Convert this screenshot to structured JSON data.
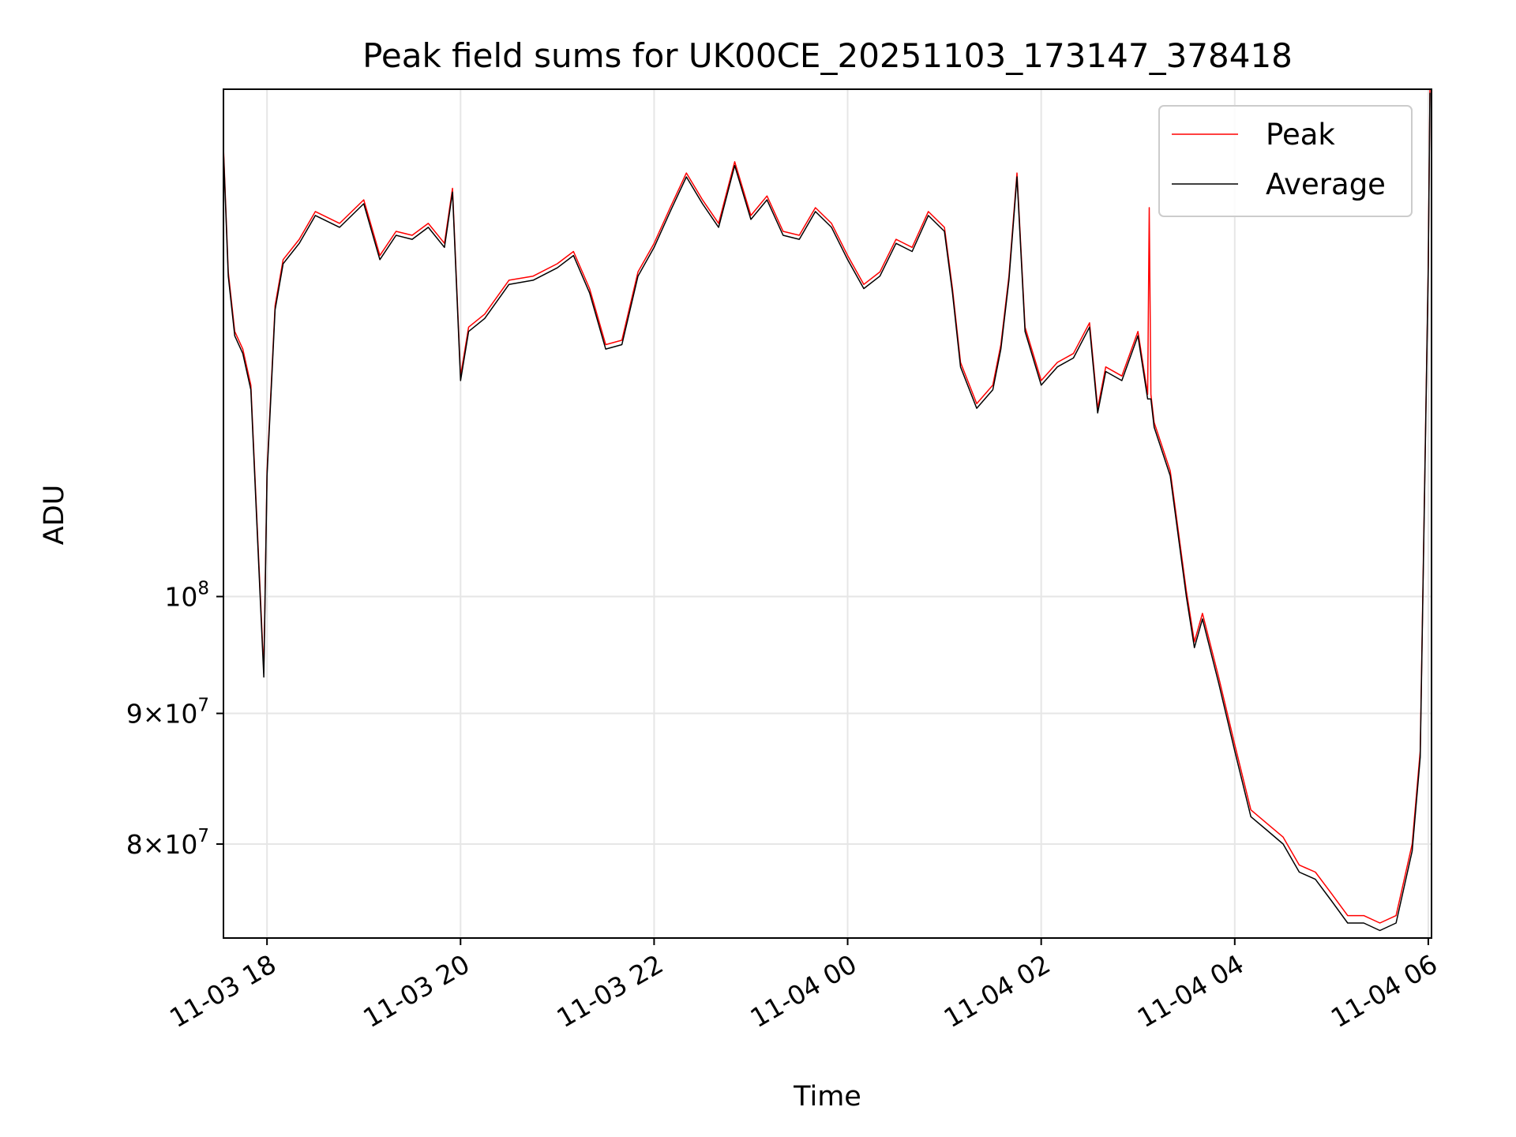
{
  "chart_data": {
    "type": "line",
    "title": "Peak field sums for UK00CE_20251103_173147_378418",
    "xlabel": "Time",
    "ylabel": "ADU",
    "yscale": "log",
    "xlim": [
      "2025-11-03 17:33",
      "2025-11-04 06:02"
    ],
    "ylim": [
      73500000,
      158000000
    ],
    "grid": true,
    "legend_position": "top-right",
    "x_ticks": [
      {
        "value": "2025-11-03 18:00",
        "label": "11-03 18"
      },
      {
        "value": "2025-11-03 20:00",
        "label": "11-03 20"
      },
      {
        "value": "2025-11-03 22:00",
        "label": "11-03 22"
      },
      {
        "value": "2025-11-04 00:00",
        "label": "11-04 00"
      },
      {
        "value": "2025-11-04 02:00",
        "label": "11-04 02"
      },
      {
        "value": "2025-11-04 04:00",
        "label": "11-04 04"
      },
      {
        "value": "2025-11-04 06:00",
        "label": "11-04 06"
      }
    ],
    "y_ticks": [
      {
        "value": 100000000,
        "base": "10",
        "exp": "8"
      },
      {
        "value": 90000000,
        "mant": "9",
        "base": "10",
        "exp": "7"
      },
      {
        "value": 80000000,
        "mant": "8",
        "base": "10",
        "exp": "7"
      }
    ],
    "series": [
      {
        "name": "Peak",
        "color": "#ff0000",
        "x": [
          "2025-11-03 17:33",
          "2025-11-03 17:36",
          "2025-11-03 17:40",
          "2025-11-03 17:45",
          "2025-11-03 17:50",
          "2025-11-03 17:55",
          "2025-11-03 17:58",
          "2025-11-03 18:00",
          "2025-11-03 18:05",
          "2025-11-03 18:10",
          "2025-11-03 18:20",
          "2025-11-03 18:30",
          "2025-11-03 18:45",
          "2025-11-03 19:00",
          "2025-11-03 19:10",
          "2025-11-03 19:20",
          "2025-11-03 19:30",
          "2025-11-03 19:40",
          "2025-11-03 19:50",
          "2025-11-03 19:55",
          "2025-11-03 20:00",
          "2025-11-03 20:05",
          "2025-11-03 20:15",
          "2025-11-03 20:30",
          "2025-11-03 20:45",
          "2025-11-03 21:00",
          "2025-11-03 21:10",
          "2025-11-03 21:20",
          "2025-11-03 21:30",
          "2025-11-03 21:40",
          "2025-11-03 21:50",
          "2025-11-03 22:00",
          "2025-11-03 22:10",
          "2025-11-03 22:20",
          "2025-11-03 22:30",
          "2025-11-03 22:40",
          "2025-11-03 22:50",
          "2025-11-03 23:00",
          "2025-11-03 23:10",
          "2025-11-03 23:20",
          "2025-11-03 23:30",
          "2025-11-03 23:40",
          "2025-11-03 23:50",
          "2025-11-04 00:00",
          "2025-11-04 00:10",
          "2025-11-04 00:20",
          "2025-11-04 00:30",
          "2025-11-04 00:40",
          "2025-11-04 00:50",
          "2025-11-04 01:00",
          "2025-11-04 01:05",
          "2025-11-04 01:10",
          "2025-11-04 01:20",
          "2025-11-04 01:30",
          "2025-11-04 01:35",
          "2025-11-04 01:40",
          "2025-11-04 01:45",
          "2025-11-04 01:50",
          "2025-11-04 02:00",
          "2025-11-04 02:10",
          "2025-11-04 02:20",
          "2025-11-04 02:30",
          "2025-11-04 02:35",
          "2025-11-04 02:40",
          "2025-11-04 02:50",
          "2025-11-04 03:00",
          "2025-11-04 03:06",
          "2025-11-04 03:07",
          "2025-11-04 03:08",
          "2025-11-04 03:10",
          "2025-11-04 03:20",
          "2025-11-04 03:30",
          "2025-11-04 03:35",
          "2025-11-04 03:40",
          "2025-11-04 03:50",
          "2025-11-04 04:00",
          "2025-11-04 04:10",
          "2025-11-04 04:20",
          "2025-11-04 04:30",
          "2025-11-04 04:40",
          "2025-11-04 04:50",
          "2025-11-04 05:00",
          "2025-11-04 05:10",
          "2025-11-04 05:20",
          "2025-11-04 05:30",
          "2025-11-04 05:40",
          "2025-11-04 05:50",
          "2025-11-04 05:55",
          "2025-11-04 06:00",
          "2025-11-04 06:01"
        ],
        "values": [
          150000000,
          134000000,
          127000000,
          125000000,
          121000000,
          103000000,
          93500000,
          112000000,
          130000000,
          135500000,
          138000000,
          141500000,
          140000000,
          143000000,
          136000000,
          139000000,
          138500000,
          140000000,
          137500000,
          144500000,
          122000000,
          127500000,
          129000000,
          133000000,
          133500000,
          135000000,
          136500000,
          132000000,
          125500000,
          126000000,
          134000000,
          137500000,
          142000000,
          146500000,
          143000000,
          140000000,
          148000000,
          141000000,
          143500000,
          139000000,
          138500000,
          142000000,
          140000000,
          136000000,
          132500000,
          134000000,
          138000000,
          137000000,
          141500000,
          139500000,
          132000000,
          123500000,
          119000000,
          121000000,
          125500000,
          133500000,
          146500000,
          127500000,
          121500000,
          123500000,
          124500000,
          128000000,
          118500000,
          123000000,
          122000000,
          127000000,
          120000000,
          142000000,
          120000000,
          117000000,
          112000000,
          100500000,
          96000000,
          98500000,
          93000000,
          87500000,
          82500000,
          81500000,
          80500000,
          78500000,
          78000000,
          76500000,
          75000000,
          75000000,
          74500000,
          75000000,
          80000000,
          87000000,
          135000000,
          158000000
        ]
      },
      {
        "name": "Average",
        "color": "#000000",
        "x": [
          "2025-11-03 17:33",
          "2025-11-03 17:36",
          "2025-11-03 17:40",
          "2025-11-03 17:45",
          "2025-11-03 17:50",
          "2025-11-03 17:55",
          "2025-11-03 17:58",
          "2025-11-03 18:00",
          "2025-11-03 18:05",
          "2025-11-03 18:10",
          "2025-11-03 18:20",
          "2025-11-03 18:30",
          "2025-11-03 18:45",
          "2025-11-03 19:00",
          "2025-11-03 19:10",
          "2025-11-03 19:20",
          "2025-11-03 19:30",
          "2025-11-03 19:40",
          "2025-11-03 19:50",
          "2025-11-03 19:55",
          "2025-11-03 20:00",
          "2025-11-03 20:05",
          "2025-11-03 20:15",
          "2025-11-03 20:30",
          "2025-11-03 20:45",
          "2025-11-03 21:00",
          "2025-11-03 21:10",
          "2025-11-03 21:20",
          "2025-11-03 21:30",
          "2025-11-03 21:40",
          "2025-11-03 21:50",
          "2025-11-03 22:00",
          "2025-11-03 22:10",
          "2025-11-03 22:20",
          "2025-11-03 22:30",
          "2025-11-03 22:40",
          "2025-11-03 22:50",
          "2025-11-03 23:00",
          "2025-11-03 23:10",
          "2025-11-03 23:20",
          "2025-11-03 23:30",
          "2025-11-03 23:40",
          "2025-11-03 23:50",
          "2025-11-04 00:00",
          "2025-11-04 00:10",
          "2025-11-04 00:20",
          "2025-11-04 00:30",
          "2025-11-04 00:40",
          "2025-11-04 00:50",
          "2025-11-04 01:00",
          "2025-11-04 01:05",
          "2025-11-04 01:10",
          "2025-11-04 01:20",
          "2025-11-04 01:30",
          "2025-11-04 01:35",
          "2025-11-04 01:40",
          "2025-11-04 01:45",
          "2025-11-04 01:50",
          "2025-11-04 02:00",
          "2025-11-04 02:10",
          "2025-11-04 02:20",
          "2025-11-04 02:30",
          "2025-11-04 02:35",
          "2025-11-04 02:40",
          "2025-11-04 02:50",
          "2025-11-04 03:00",
          "2025-11-04 03:06",
          "2025-11-04 03:07",
          "2025-11-04 03:08",
          "2025-11-04 03:10",
          "2025-11-04 03:20",
          "2025-11-04 03:30",
          "2025-11-04 03:35",
          "2025-11-04 03:40",
          "2025-11-04 03:50",
          "2025-11-04 04:00",
          "2025-11-04 04:10",
          "2025-11-04 04:20",
          "2025-11-04 04:30",
          "2025-11-04 04:40",
          "2025-11-04 04:50",
          "2025-11-04 05:00",
          "2025-11-04 05:10",
          "2025-11-04 05:20",
          "2025-11-04 05:30",
          "2025-11-04 05:40",
          "2025-11-04 05:50",
          "2025-11-04 05:55",
          "2025-11-04 06:00",
          "2025-11-04 06:01"
        ],
        "values": [
          149500000,
          133500000,
          126500000,
          124500000,
          120500000,
          102500000,
          93000000,
          111500000,
          129500000,
          135000000,
          137500000,
          141000000,
          139500000,
          142500000,
          135500000,
          138500000,
          138000000,
          139500000,
          137000000,
          144000000,
          121500000,
          127000000,
          128500000,
          132500000,
          133000000,
          134500000,
          136000000,
          131500000,
          125000000,
          125500000,
          133500000,
          137000000,
          141500000,
          146000000,
          142500000,
          139500000,
          147500000,
          140500000,
          143000000,
          138500000,
          138000000,
          141500000,
          139500000,
          135500000,
          132000000,
          133500000,
          137500000,
          136500000,
          141000000,
          139000000,
          131500000,
          123000000,
          118500000,
          120500000,
          125000000,
          133000000,
          146000000,
          127000000,
          121000000,
          123000000,
          124000000,
          127500000,
          118000000,
          122500000,
          121500000,
          126500000,
          119500000,
          119500000,
          119500000,
          116500000,
          111500000,
          100000000,
          95500000,
          98000000,
          92500000,
          87000000,
          82000000,
          81000000,
          80000000,
          78000000,
          77500000,
          76000000,
          74500000,
          74500000,
          74000000,
          74500000,
          79500000,
          86500000,
          134500000,
          157500000
        ]
      }
    ]
  }
}
